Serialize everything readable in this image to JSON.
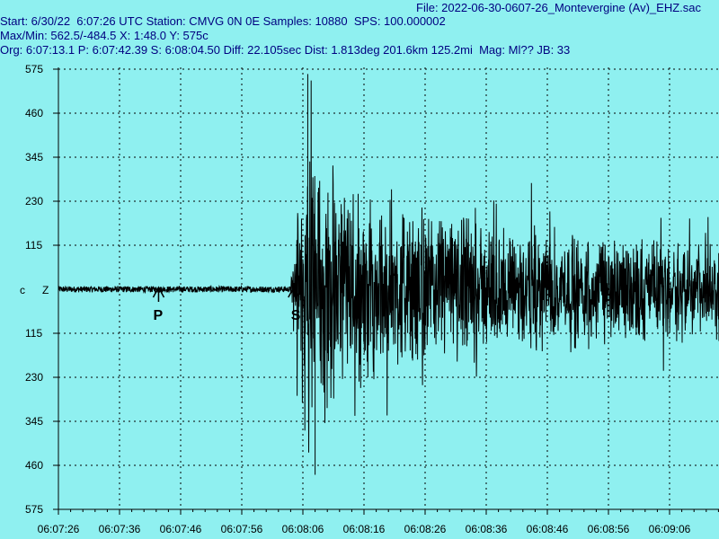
{
  "header": {
    "file_line": "File: 2022-06-30-0607-26_Montevergine (Av)_EHZ.sac",
    "start_line": "Start: 6/30/22  6:07:26 UTC Station: CMVG 0N 0E Samples: 10880  SPS: 100.000002",
    "maxmin_line": "Max/Min: 562.5/-484.5 X: 1:48.0 Y: 575c",
    "org_line": "Org: 6:07:13.1 P: 6:07:42.39 S: 6:08:04.50 Diff: 22.105sec Dist: 1.813deg 201.6km 125.2mi  Mag: Ml?? JB: 33"
  },
  "colors": {
    "background": "#8ff0f0",
    "text": "#000080",
    "trace": "#000000",
    "grid": "#000000"
  },
  "chart_data": {
    "type": "line",
    "title": "",
    "xlabel": "",
    "ylabel": "",
    "xlim_seconds_from_start": [
      0,
      108.8
    ],
    "ylim": [
      -575,
      575
    ],
    "grid": true,
    "y_ticks": [
      {
        "value": 575,
        "label": "575"
      },
      {
        "value": 460,
        "label": "460"
      },
      {
        "value": 345,
        "label": "345"
      },
      {
        "value": 230,
        "label": "230"
      },
      {
        "value": 115,
        "label": "115"
      },
      {
        "value": -115,
        "label": "115"
      },
      {
        "value": -230,
        "label": "230"
      },
      {
        "value": -345,
        "label": "345"
      },
      {
        "value": -460,
        "label": "460"
      },
      {
        "value": -575,
        "label": "575"
      }
    ],
    "x_ticks": [
      {
        "t": 0,
        "label": "06:07:26"
      },
      {
        "t": 10,
        "label": "06:07:36"
      },
      {
        "t": 20,
        "label": "06:07:46"
      },
      {
        "t": 30,
        "label": "06:07:56"
      },
      {
        "t": 40,
        "label": "06:08:06"
      },
      {
        "t": 50,
        "label": "06:08:16"
      },
      {
        "t": 60,
        "label": "06:08:26"
      },
      {
        "t": 70,
        "label": "06:08:36"
      },
      {
        "t": 80,
        "label": "06:08:46"
      },
      {
        "t": 90,
        "label": "06:08:56"
      },
      {
        "t": 100,
        "label": "06:09:06"
      }
    ],
    "channel_label_left": "c",
    "channel_label_right": "Z",
    "markers": [
      {
        "label": "P",
        "t": 16.39
      },
      {
        "label": "S",
        "t": 38.5
      }
    ],
    "max": 562.5,
    "min": -484.5,
    "sps": 100.000002,
    "samples": 10880,
    "envelope_points": [
      {
        "t": 0,
        "amp": 8
      },
      {
        "t": 38.0,
        "amp": 8
      },
      {
        "t": 38.5,
        "amp": 120
      },
      {
        "t": 39.5,
        "amp": 250
      },
      {
        "t": 41.0,
        "amp": 520
      },
      {
        "t": 43.0,
        "amp": 380
      },
      {
        "t": 45.0,
        "amp": 320
      },
      {
        "t": 50.0,
        "amp": 260
      },
      {
        "t": 60.0,
        "amp": 220
      },
      {
        "t": 80.0,
        "amp": 170
      },
      {
        "t": 108.8,
        "amp": 150
      }
    ]
  }
}
